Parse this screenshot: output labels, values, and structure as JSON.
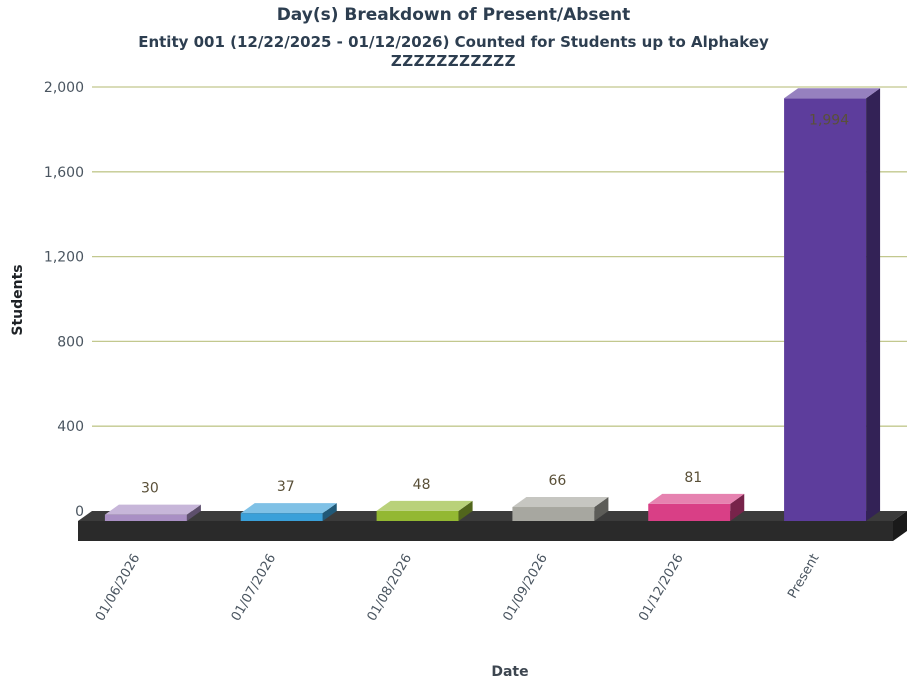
{
  "chart_data": {
    "type": "bar",
    "title": "Day(s) Breakdown of Present/Absent",
    "subtitle_line1": "Entity 001 (12/22/2025 - 01/12/2026) Counted for Students up to Alphakey",
    "subtitle_line2": "ZZZZZZZZZZZ",
    "xlabel": "Date",
    "ylabel": "Students",
    "categories": [
      "01/06/2026",
      "01/07/2026",
      "01/08/2026",
      "01/09/2026",
      "01/12/2026",
      "Present"
    ],
    "values": [
      30,
      37,
      48,
      66,
      81,
      1994
    ],
    "data_labels": [
      "30",
      "37",
      "48",
      "66",
      "81",
      "1,994"
    ],
    "yticks": [
      "0",
      "400",
      "800",
      "1,200",
      "1,600",
      "2,000"
    ],
    "ytick_values": [
      0,
      400,
      800,
      1200,
      1600,
      2000
    ],
    "ylim": [
      0,
      2000
    ],
    "grid": true,
    "colors": [
      "#a98fc4",
      "#3aa0d9",
      "#93b832",
      "#a7a7a0",
      "#d93f86",
      "#5d3d9c"
    ],
    "grid_color": "#c2c88e"
  }
}
